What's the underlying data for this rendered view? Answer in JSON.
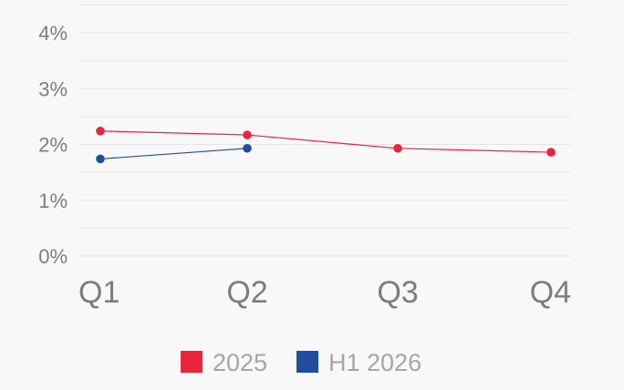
{
  "chart_data": {
    "type": "line",
    "categories": [
      "Q1",
      "Q2",
      "Q3",
      "Q4"
    ],
    "series": [
      {
        "name": "2025",
        "values": [
          2.24,
          2.17,
          1.93,
          1.86
        ],
        "color": "#e8253a"
      },
      {
        "name": "H1 2026",
        "values": [
          1.74,
          1.93,
          null,
          null
        ],
        "color": "#1f4e9e"
      }
    ],
    "ylim": [
      0,
      4
    ],
    "yticks": [
      "0%",
      "1%",
      "2%",
      "3%",
      "4%"
    ],
    "grid": true,
    "legend_position": "bottom-center",
    "title": "",
    "xlabel": "",
    "ylabel": ""
  }
}
